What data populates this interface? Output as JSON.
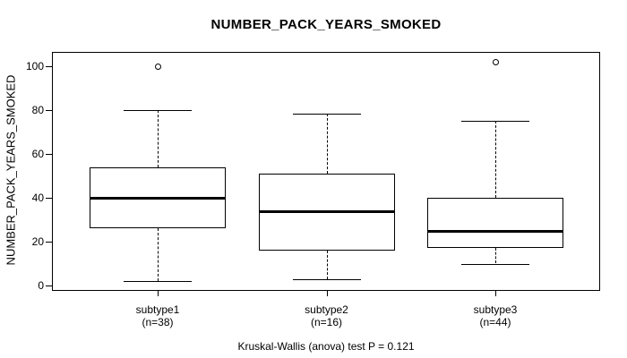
{
  "chart_data": {
    "type": "boxplot",
    "title": "NUMBER_PACK_YEARS_SMOKED",
    "ylabel": "NUMBER_PACK_YEARS_SMOKED",
    "footer": "Kruskal-Wallis (anova) test P = 0.121",
    "ylim": [
      0,
      100
    ],
    "yticks": [
      0,
      20,
      40,
      60,
      80,
      100
    ],
    "grid": false,
    "legend": null,
    "groups": [
      {
        "label": "subtype1",
        "sublabel": "(n=38)",
        "n": 38,
        "whisker_low": 2,
        "q1": 26,
        "median": 40,
        "q3": 54,
        "whisker_high": 80,
        "outliers": [
          100
        ]
      },
      {
        "label": "subtype2",
        "sublabel": "(n=16)",
        "n": 16,
        "whisker_low": 3,
        "q1": 16,
        "median": 34,
        "q3": 51,
        "whisker_high": 78.5,
        "outliers": []
      },
      {
        "label": "subtype3",
        "sublabel": "(n=44)",
        "n": 44,
        "whisker_low": 10,
        "q1": 17,
        "median": 25,
        "q3": 40,
        "whisker_high": 75,
        "outliers": [
          102
        ]
      }
    ],
    "colors": {
      "line": "#000000",
      "background": "#ffffff"
    }
  }
}
